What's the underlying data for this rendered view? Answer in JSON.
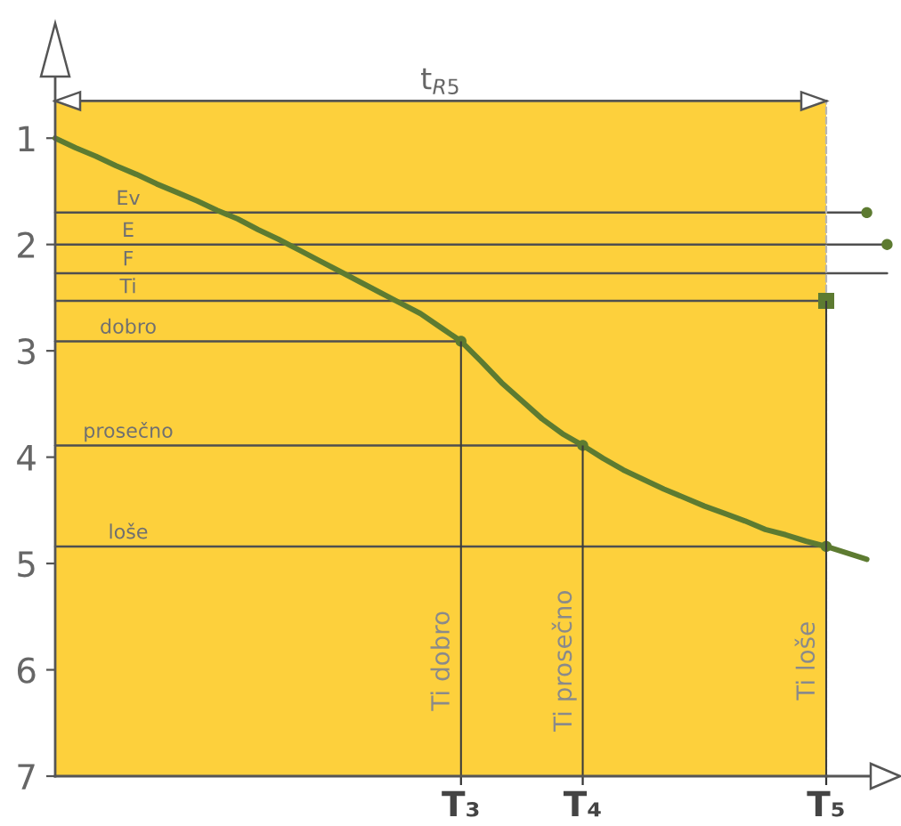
{
  "chart_data": {
    "type": "line",
    "ylim": [
      7,
      0.65
    ],
    "categories": [
      null,
      null,
      null,
      null,
      null,
      null,
      null,
      null,
      null,
      null,
      null,
      null,
      null,
      null,
      null,
      null,
      null,
      null,
      null,
      null,
      "T₃",
      null,
      null,
      null,
      null,
      null,
      "T₄",
      null,
      null,
      null,
      null,
      null,
      null,
      null,
      null,
      null,
      null,
      null,
      "T₅",
      null,
      null,
      null
    ],
    "yticks": [
      1,
      2,
      3,
      4,
      5,
      6,
      7
    ],
    "annotations": [
      "t$_{R5}$"
    ],
    "series": [
      {
        "color": "#5d7b31",
        "values": [
          1.0,
          1.09,
          1.17,
          1.26,
          1.34,
          1.43,
          1.51,
          1.59,
          1.68,
          1.76,
          1.86,
          1.95,
          2.05,
          2.15,
          2.25,
          2.35,
          2.45,
          2.55,
          2.65,
          2.78,
          2.91,
          3.1,
          3.3,
          3.47,
          3.64,
          3.78,
          3.89,
          4.01,
          4.12,
          4.21,
          4.3,
          4.38,
          4.46,
          4.53,
          4.6,
          4.68,
          4.73,
          4.79,
          4.84,
          4.9,
          4.96,
          null
        ]
      },
      {
        "name": "Ev",
        "color": "#4f4f4f",
        "values": [
          1.7,
          1.7,
          1.7,
          1.7,
          1.7,
          1.7,
          1.7,
          1.7,
          1.7,
          1.7,
          1.7,
          1.7,
          1.7,
          1.7,
          1.7,
          1.7,
          1.7,
          1.7,
          1.7,
          1.7,
          1.7,
          1.7,
          1.7,
          1.7,
          1.7,
          1.7,
          1.7,
          1.7,
          1.7,
          1.7,
          1.7,
          1.7,
          1.7,
          1.7,
          1.7,
          1.7,
          1.7,
          1.7,
          1.7,
          1.7,
          1.7,
          null
        ]
      },
      {
        "name": "E",
        "color": "#4f4f4f",
        "values": [
          2.0,
          2.0,
          2.0,
          2.0,
          2.0,
          2.0,
          2.0,
          2.0,
          2.0,
          2.0,
          2.0,
          2.0,
          2.0,
          2.0,
          2.0,
          2.0,
          2.0,
          2.0,
          2.0,
          2.0,
          2.0,
          2.0,
          2.0,
          2.0,
          2.0,
          2.0,
          2.0,
          2.0,
          2.0,
          2.0,
          2.0,
          2.0,
          2.0,
          2.0,
          2.0,
          2.0,
          2.0,
          2.0,
          2.0,
          2.0,
          2.0,
          2.0
        ]
      },
      {
        "name": "F",
        "color": "#4f4f4f",
        "values": [
          2.27,
          2.27,
          2.27,
          2.27,
          2.27,
          2.27,
          2.27,
          2.27,
          2.27,
          2.27,
          2.27,
          2.27,
          2.27,
          2.27,
          2.27,
          2.27,
          2.27,
          2.27,
          2.27,
          2.27,
          2.27,
          2.27,
          2.27,
          2.27,
          2.27,
          2.27,
          2.27,
          2.27,
          2.27,
          2.27,
          2.27,
          2.27,
          2.27,
          2.27,
          2.27,
          2.27,
          2.27,
          2.27,
          2.27,
          2.27,
          2.27,
          2.27
        ]
      },
      {
        "name": "Ti",
        "color": "#4f4f4f",
        "values": [
          2.53,
          2.53,
          2.53,
          2.53,
          2.53,
          2.53,
          2.53,
          2.53,
          2.53,
          2.53,
          2.53,
          2.53,
          2.53,
          2.53,
          2.53,
          2.53,
          2.53,
          2.53,
          2.53,
          2.53,
          2.53,
          2.53,
          2.53,
          2.53,
          2.53,
          2.53,
          2.53,
          2.53,
          2.53,
          2.53,
          2.53,
          2.53,
          2.53,
          2.53,
          2.53,
          2.53,
          2.53,
          2.53,
          2.53,
          null,
          null,
          null
        ]
      },
      {
        "name": "dobro",
        "color": "#4f4f4f",
        "values": [
          2.91,
          2.91,
          2.91,
          2.91,
          2.91,
          2.91,
          2.91,
          2.91,
          2.91,
          2.91,
          2.91,
          2.91,
          2.91,
          2.91,
          2.91,
          2.91,
          2.91,
          2.91,
          2.91,
          2.91,
          2.91,
          null,
          null,
          null,
          null,
          null,
          null,
          null,
          null,
          null,
          null,
          null,
          null,
          null,
          null,
          null,
          null,
          null,
          null,
          null,
          null,
          null
        ]
      },
      {
        "name": "prosečno",
        "color": "#4f4f4f",
        "values": [
          3.89,
          3.89,
          3.89,
          3.89,
          3.89,
          3.89,
          3.89,
          3.89,
          3.89,
          3.89,
          3.89,
          3.89,
          3.89,
          3.89,
          3.89,
          3.89,
          3.89,
          3.89,
          3.89,
          3.89,
          3.89,
          3.89,
          3.89,
          3.89,
          3.89,
          3.89,
          3.89,
          null,
          null,
          null,
          null,
          null,
          null,
          null,
          null,
          null,
          null,
          null,
          null,
          null,
          null,
          null
        ]
      },
      {
        "name": "loše",
        "color": "#4f4f4f",
        "values": [
          4.84,
          4.84,
          4.84,
          4.84,
          4.84,
          4.84,
          4.84,
          4.84,
          4.84,
          4.84,
          4.84,
          4.84,
          4.84,
          4.84,
          4.84,
          4.84,
          4.84,
          4.84,
          4.84,
          4.84,
          4.84,
          4.84,
          4.84,
          4.84,
          4.84,
          4.84,
          4.84,
          4.84,
          4.84,
          4.84,
          4.84,
          4.84,
          4.84,
          4.84,
          4.84,
          4.84,
          4.84,
          4.84,
          4.84,
          null,
          null,
          null
        ]
      },
      {
        "type": "bar",
        "name": "Ti dobro",
        "color": "#3a3a3a",
        "base": [
          null,
          null,
          null,
          null,
          null,
          null,
          null,
          null,
          null,
          null,
          null,
          null,
          null,
          null,
          null,
          null,
          null,
          null,
          null,
          null,
          7,
          null,
          null,
          null,
          null,
          null,
          null,
          null,
          null,
          null,
          null,
          null,
          null,
          null,
          null,
          null,
          null,
          null,
          null,
          null,
          null,
          null
        ],
        "values": [
          null,
          null,
          null,
          null,
          null,
          null,
          null,
          null,
          null,
          null,
          null,
          null,
          null,
          null,
          null,
          null,
          null,
          null,
          null,
          null,
          -4.09,
          null,
          null,
          null,
          null,
          null,
          null,
          null,
          null,
          null,
          null,
          null,
          null,
          null,
          null,
          null,
          null,
          null,
          null,
          null,
          null,
          null
        ]
      },
      {
        "type": "bar",
        "name": "Ti prosečno",
        "color": "#3a3a3a",
        "base": [
          null,
          null,
          null,
          null,
          null,
          null,
          null,
          null,
          null,
          null,
          null,
          null,
          null,
          null,
          null,
          null,
          null,
          null,
          null,
          null,
          null,
          null,
          null,
          null,
          null,
          null,
          7,
          null,
          null,
          null,
          null,
          null,
          null,
          null,
          null,
          null,
          null,
          null,
          null,
          null,
          null,
          null
        ],
        "values": [
          null,
          null,
          null,
          null,
          null,
          null,
          null,
          null,
          null,
          null,
          null,
          null,
          null,
          null,
          null,
          null,
          null,
          null,
          null,
          null,
          null,
          null,
          null,
          null,
          null,
          null,
          -3.11,
          null,
          null,
          null,
          null,
          null,
          null,
          null,
          null,
          null,
          null,
          null,
          null,
          null,
          null,
          null
        ]
      },
      {
        "type": "bar",
        "name": "Ti loše",
        "color": "#3a3a3a",
        "base": [
          null,
          null,
          null,
          null,
          null,
          null,
          null,
          null,
          null,
          null,
          null,
          null,
          null,
          null,
          null,
          null,
          null,
          null,
          null,
          null,
          null,
          null,
          null,
          null,
          null,
          null,
          null,
          null,
          null,
          null,
          null,
          null,
          null,
          null,
          null,
          null,
          null,
          null,
          7,
          null,
          null,
          null
        ],
        "values": [
          null,
          null,
          null,
          null,
          null,
          null,
          null,
          null,
          null,
          null,
          null,
          null,
          null,
          null,
          null,
          null,
          null,
          null,
          null,
          null,
          null,
          null,
          null,
          null,
          null,
          null,
          null,
          null,
          null,
          null,
          null,
          null,
          null,
          null,
          null,
          null,
          null,
          null,
          -4.47,
          null,
          null,
          null
        ]
      },
      {
        "type": "scatter",
        "marker": "circle",
        "color": "#5d7b31",
        "values": [
          null,
          null,
          null,
          null,
          null,
          null,
          null,
          null,
          null,
          null,
          null,
          null,
          null,
          null,
          null,
          null,
          null,
          null,
          null,
          null,
          2.91,
          null,
          null,
          null,
          null,
          null,
          3.89,
          null,
          null,
          null,
          null,
          null,
          null,
          null,
          null,
          null,
          null,
          null,
          4.84,
          null,
          1.7,
          2.0
        ]
      },
      {
        "type": "scatter",
        "marker": "square",
        "color": "#5d7b31",
        "values": [
          null,
          null,
          null,
          null,
          null,
          null,
          null,
          null,
          null,
          null,
          null,
          null,
          null,
          null,
          null,
          null,
          null,
          null,
          null,
          null,
          null,
          null,
          null,
          null,
          null,
          null,
          null,
          null,
          null,
          null,
          null,
          null,
          null,
          null,
          null,
          null,
          null,
          null,
          2.53,
          null,
          null,
          null
        ]
      }
    ]
  }
}
